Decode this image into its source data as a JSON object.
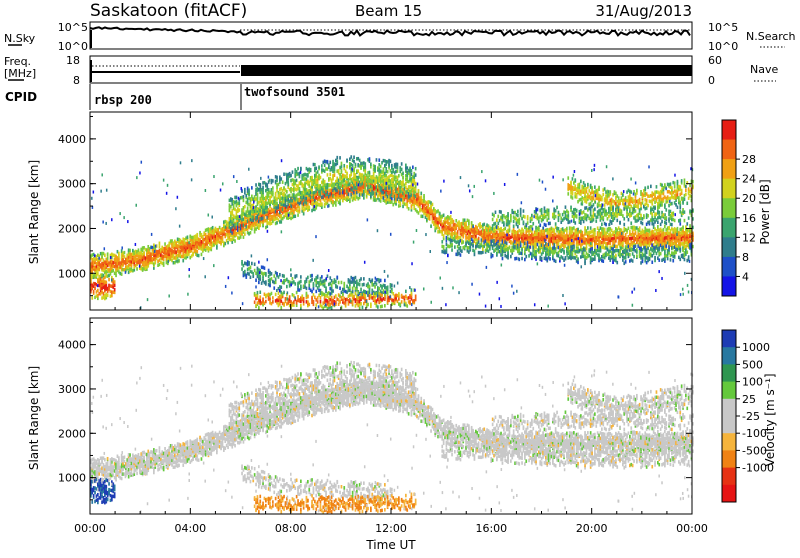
{
  "header": {
    "station": "Saskatoon (fitACF)",
    "beam": "Beam 15",
    "date": "31/Aug/2013"
  },
  "nsky_panel": {
    "left_label": "N.Sky",
    "right_label": "N.Search",
    "left_ticks": [
      "10^5",
      "10^0"
    ],
    "right_ticks": [
      "10^5",
      "10^0"
    ]
  },
  "freq_panel": {
    "left_label_line1": "Freq.",
    "left_label_line2": "[MHz]",
    "right_label": "Nave",
    "left_ticks": [
      "18",
      "8"
    ],
    "right_ticks": [
      "60",
      "0"
    ]
  },
  "cpid_panel": {
    "label": "CPID",
    "modes": [
      {
        "name": "rbsp 200",
        "start_hour": 0
      },
      {
        "name": "twofsound 3501",
        "start_hour": 6
      }
    ]
  },
  "chart_data": [
    {
      "type": "heatmap",
      "name": "power",
      "ylabel": "Slant Range [km]",
      "ylim": [
        180,
        4600
      ],
      "xlim": [
        0,
        24
      ],
      "y_ticks": [
        "1000",
        "2000",
        "3000",
        "4000"
      ],
      "colorbar": {
        "label": "Power [dB]",
        "ticks": [
          "4",
          "8",
          "12",
          "16",
          "20",
          "24",
          "28"
        ],
        "colors": [
          "#1414e6",
          "#1e50c8",
          "#2f7d8c",
          "#3aa46e",
          "#7acc3a",
          "#d2d21e",
          "#f0a014",
          "#f06414",
          "#e61e14"
        ]
      }
    },
    {
      "type": "heatmap",
      "name": "velocity",
      "ylabel": "Slant Range [km]",
      "xlabel": "Time UT",
      "ylim": [
        180,
        4600
      ],
      "xlim": [
        0,
        24
      ],
      "y_ticks": [
        "1000",
        "2000",
        "3000",
        "4000"
      ],
      "x_ticks": [
        "00:00",
        "04:00",
        "08:00",
        "12:00",
        "16:00",
        "20:00",
        "00:00"
      ],
      "colorbar": {
        "label": "Velocity [m s⁻¹]",
        "ticks": [
          "1000",
          "500",
          "100",
          "25",
          "-25",
          "-100",
          "-500",
          "-1000"
        ],
        "colors": [
          "#1e3cb4",
          "#2878a0",
          "#2f9650",
          "#64c83c",
          "#c8c8c8",
          "#c8c8c8",
          "#f5b43c",
          "#f08214",
          "#e63214",
          "#e61414"
        ]
      }
    }
  ]
}
